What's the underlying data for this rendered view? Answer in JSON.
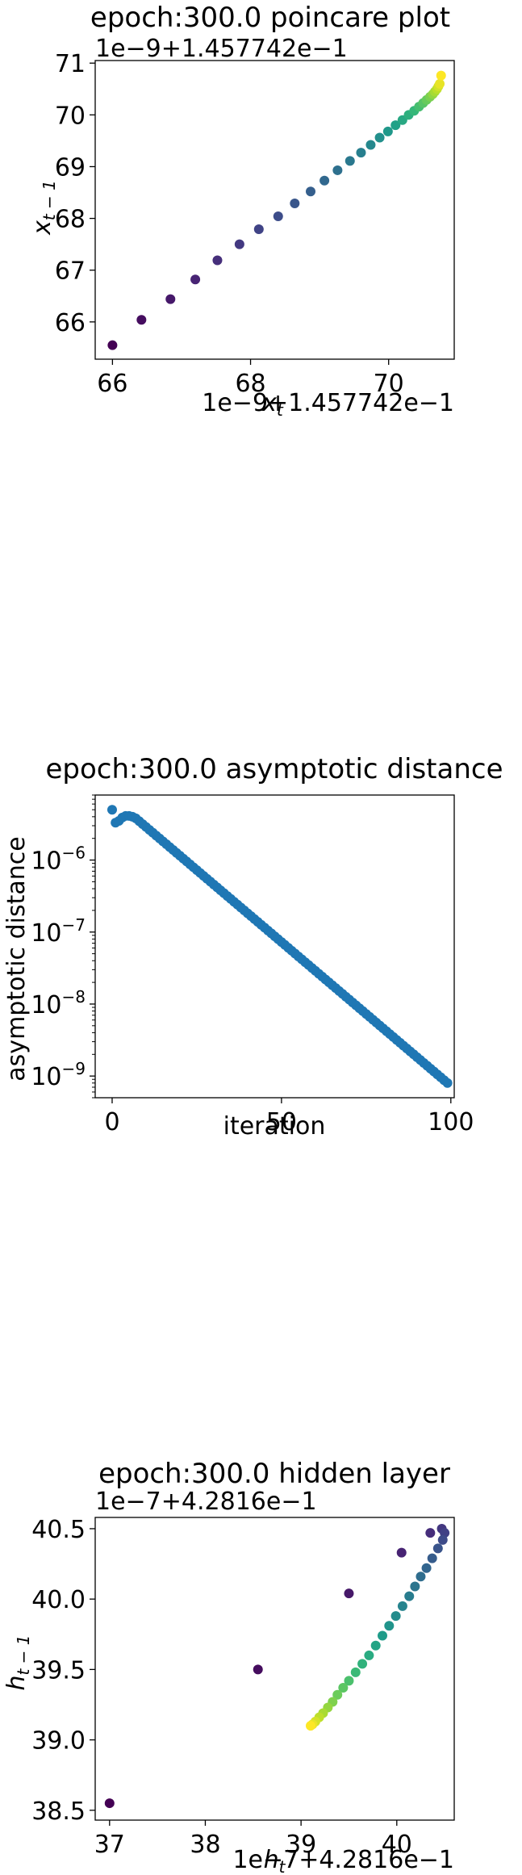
{
  "chart_data": [
    {
      "type": "scatter",
      "title": "epoch:300.0 poincare plot",
      "xlabel": "x_t",
      "ylabel": "x_{t-1}",
      "x_offset_label": "1e−9+1.457742e−1",
      "y_offset_label": "1e−9+1.457742e−1",
      "xlim": [
        65.75,
        70.95
      ],
      "ylim": [
        65.28,
        71.05
      ],
      "x_ticks": [
        66,
        68,
        70
      ],
      "x_tick_labels": [
        "66",
        "68",
        "70"
      ],
      "y_ticks": [
        66,
        67,
        68,
        69,
        70,
        71
      ],
      "y_tick_labels": [
        "66",
        "67",
        "68",
        "69",
        "70",
        "71"
      ],
      "colormap": "viridis",
      "grid": false,
      "points": {
        "x": [
          66.0,
          66.42,
          66.84,
          67.2,
          67.52,
          67.84,
          68.12,
          68.4,
          68.64,
          68.87,
          69.07,
          69.26,
          69.44,
          69.6,
          69.74,
          69.87,
          69.99,
          70.1,
          70.2,
          70.29,
          70.37,
          70.44,
          70.5,
          70.55,
          70.6,
          70.64,
          70.67,
          70.7,
          70.72,
          70.74,
          70.76
        ],
        "y": [
          65.55,
          66.04,
          66.44,
          66.82,
          67.19,
          67.5,
          67.79,
          68.04,
          68.29,
          68.52,
          68.73,
          68.93,
          69.11,
          69.27,
          69.42,
          69.56,
          69.68,
          69.8,
          69.9,
          70.0,
          70.08,
          70.16,
          70.23,
          70.29,
          70.35,
          70.4,
          70.45,
          70.5,
          70.55,
          70.6,
          70.76
        ]
      }
    },
    {
      "type": "scatter",
      "title": "epoch:300.0 asymptotic distance",
      "xlabel": "iteration",
      "ylabel": "asymptotic distance",
      "y_scale": "log",
      "xlim": [
        -5,
        101
      ],
      "ylim": [
        5e-10,
        8e-06
      ],
      "x_ticks": [
        0,
        50,
        100
      ],
      "x_tick_labels": [
        "0",
        "50",
        "100"
      ],
      "y_ticks": [
        1e-09,
        1e-08,
        1e-07,
        1e-06
      ],
      "y_tick_labels": [
        "10−9",
        "10−8",
        "10−7",
        "10−6"
      ],
      "color": "#1f77b4",
      "grid": false,
      "series": {
        "x_start": 0,
        "x_end": 99,
        "first_values": [
          5e-06,
          3.3e-06,
          3.5e-06,
          3.9e-06,
          4.1e-06,
          4.1e-06,
          4e-06,
          3.8e-06
        ],
        "end_value": 8e-10
      }
    },
    {
      "type": "scatter",
      "title": "epoch:300.0 hidden layer",
      "xlabel": "h_t",
      "ylabel": "h_{t-1}",
      "x_offset_label": "1e−7+4.2816e−1",
      "y_offset_label": "1e−7+4.2816e−1",
      "xlim": [
        36.85,
        40.6
      ],
      "ylim": [
        38.43,
        40.58
      ],
      "x_ticks": [
        37,
        38,
        39,
        40
      ],
      "x_tick_labels": [
        "37",
        "38",
        "39",
        "40"
      ],
      "y_ticks": [
        38.5,
        39.0,
        39.5,
        40.0,
        40.5
      ],
      "y_tick_labels": [
        "38.5",
        "39.0",
        "39.5",
        "40.0",
        "40.5"
      ],
      "colormap": "viridis",
      "grid": false,
      "points": {
        "x": [
          37.0,
          38.55,
          39.5,
          40.05,
          40.35,
          40.47,
          40.5,
          40.48,
          40.43,
          40.37,
          40.31,
          40.25,
          40.19,
          40.13,
          40.06,
          39.99,
          39.92,
          39.85,
          39.78,
          39.71,
          39.64,
          39.57,
          39.5,
          39.44,
          39.38,
          39.33,
          39.28,
          39.23,
          39.19,
          39.15,
          39.12,
          39.1
        ],
        "y": [
          38.55,
          39.5,
          40.04,
          40.33,
          40.47,
          40.5,
          40.47,
          40.42,
          40.36,
          40.29,
          40.22,
          40.16,
          40.09,
          40.02,
          39.95,
          39.88,
          39.81,
          39.74,
          39.67,
          39.6,
          39.54,
          39.48,
          39.42,
          39.37,
          39.32,
          39.27,
          39.23,
          39.19,
          39.16,
          39.13,
          39.11,
          39.1
        ]
      }
    }
  ]
}
